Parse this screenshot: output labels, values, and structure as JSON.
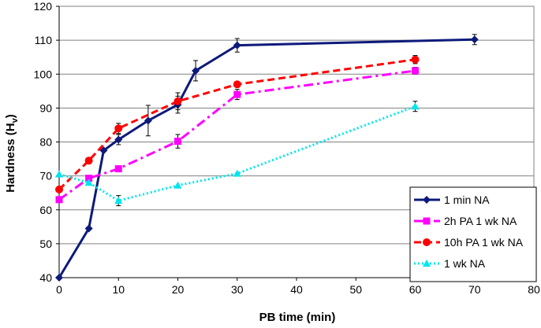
{
  "chart_data": {
    "type": "line",
    "title": "",
    "xlabel": "PB time (min)",
    "ylabel_main": "Hardness (H",
    "ylabel_sub": "v",
    "ylabel_close": ")",
    "xlim": [
      0,
      80
    ],
    "ylim": [
      40,
      120
    ],
    "xticks": [
      0,
      10,
      20,
      30,
      40,
      50,
      60,
      70,
      80
    ],
    "yticks": [
      40,
      50,
      60,
      70,
      80,
      90,
      100,
      110,
      120
    ],
    "grid": "horizontal",
    "legend_position": "bottom-right",
    "series": [
      {
        "name": "1 min NA",
        "color": "#0d1a7a",
        "marker": "diamond",
        "line_style": "solid",
        "x": [
          0,
          5,
          7.5,
          10,
          15,
          20,
          23,
          30,
          70
        ],
        "y": [
          40,
          54.5,
          77.5,
          80.7,
          86.3,
          91,
          101,
          108.5,
          110.2
        ],
        "err": [
          0,
          0,
          0,
          1.5,
          4.5,
          2.5,
          3,
          2,
          1.5
        ]
      },
      {
        "name": "2h PA 1 wk NA",
        "color": "#ff00ff",
        "marker": "square",
        "line_style": "dashdot",
        "x": [
          0,
          5,
          10,
          20,
          30,
          60
        ],
        "y": [
          63,
          69.3,
          72.1,
          80.2,
          94,
          101
        ],
        "err": [
          0,
          0,
          0,
          2,
          1.5,
          1
        ]
      },
      {
        "name": "10h PA 1 wk NA",
        "color": "#ff0000",
        "marker": "circle",
        "line_style": "dashed",
        "x": [
          0,
          5,
          10,
          20,
          30,
          60
        ],
        "y": [
          66,
          74.5,
          84,
          92,
          97,
          104.3
        ],
        "err": [
          0,
          0,
          1.5,
          2.5,
          0,
          1.2
        ]
      },
      {
        "name": "1 wk NA",
        "color": "#00e5ee",
        "marker": "triangle",
        "line_style": "dotted",
        "x": [
          0,
          5,
          10,
          20,
          30,
          60
        ],
        "y": [
          70.5,
          68,
          62.7,
          67.2,
          70.7,
          90.5
        ],
        "err": [
          0,
          0,
          1.5,
          0,
          0,
          1.5
        ]
      }
    ]
  }
}
